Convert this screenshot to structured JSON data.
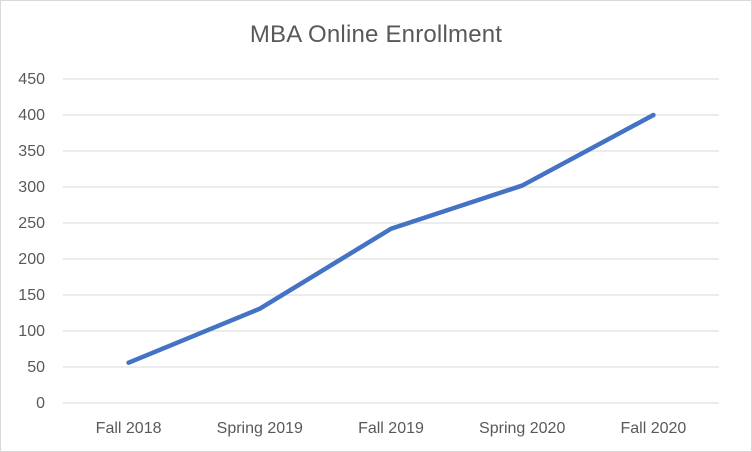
{
  "chart_data": {
    "type": "line",
    "title": "MBA Online Enrollment",
    "xlabel": "",
    "ylabel": "",
    "categories": [
      "Fall 2018",
      "Spring 2019",
      "Fall 2019",
      "Spring 2020",
      "Fall 2020"
    ],
    "series": [
      {
        "values": [
          56,
          131,
          242,
          302,
          400
        ],
        "color": "#4472c4"
      }
    ],
    "ylim": [
      0,
      450
    ],
    "yticks": [
      0,
      50,
      100,
      150,
      200,
      250,
      300,
      350,
      400,
      450
    ],
    "grid": true,
    "legend": "none",
    "gridline_color": "#d9d9d9",
    "text_color": "#595959"
  }
}
